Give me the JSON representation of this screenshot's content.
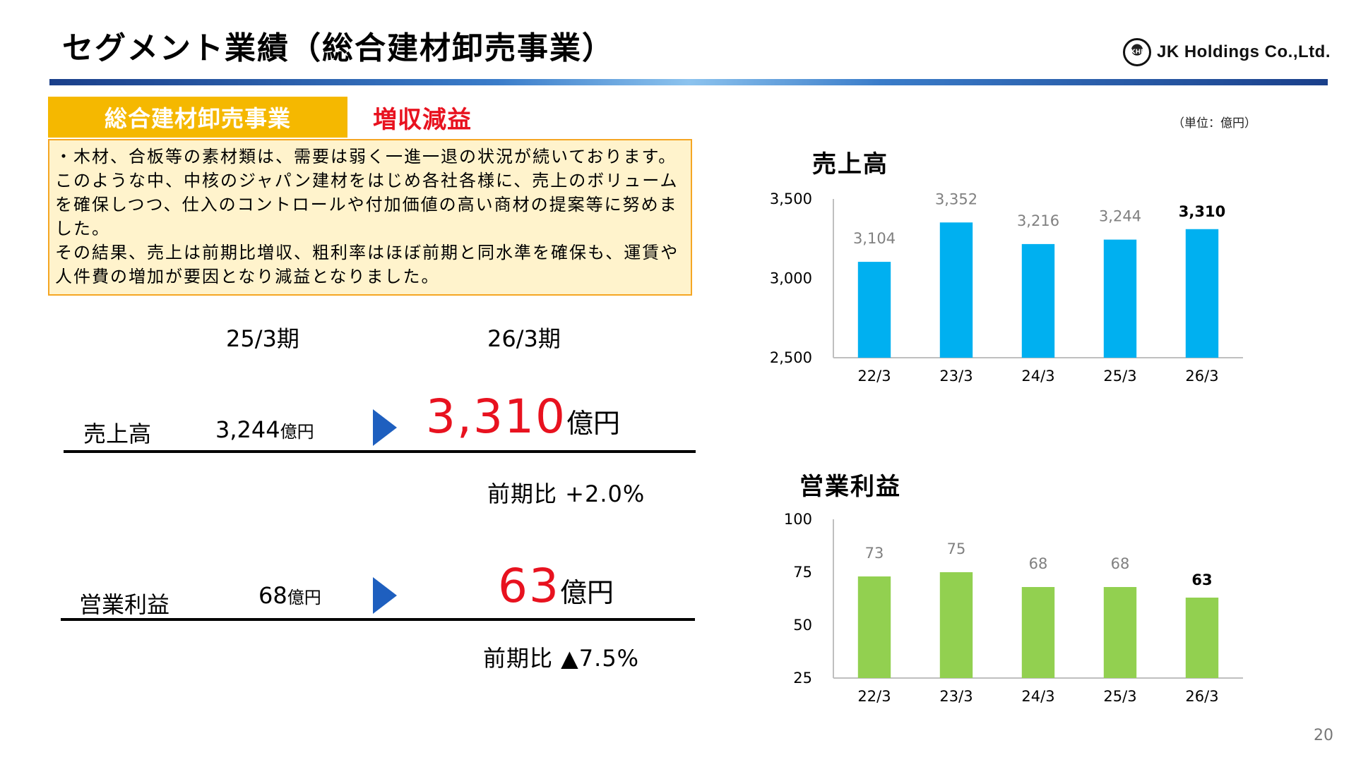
{
  "header": {
    "title": "セグメント業績（総合建材卸売事業）",
    "company": "JK Holdings Co.,Ltd.",
    "logo_mark": "JKHD"
  },
  "segment": {
    "name": "総合建材卸売事業",
    "result": "増収減益",
    "description": [
      "・木材、合板等の素材類は、需要は弱く一進一退の状況が続いております。このような中、中核のジャパン建材をはじめ各社各様に、売上のボリュームを確保しつつ、仕入のコントロールや付加価値の高い商材の提案等に努めました。",
      "その結果、売上は前期比増収、粗利率はほぼ前期と同水準を確保も、運賃や人件費の増加が要因となり減益となりました。"
    ]
  },
  "unit_note": "（単位：億円）",
  "periods": {
    "prev": "25/3期",
    "current": "26/3期"
  },
  "metrics": {
    "sales": {
      "label": "売上高",
      "prev_value": "3,244",
      "prev_unit": "億円",
      "current_value": "3,310",
      "current_unit": "億円",
      "yoy": "前期比 +2.0%"
    },
    "operating_profit": {
      "label": "営業利益",
      "prev_value": "68",
      "prev_unit": "億円",
      "current_value": "63",
      "current_unit": "億円",
      "yoy": "前期比 ▲7.5%"
    }
  },
  "colors": {
    "accent_red": "#e8121f",
    "tab_yellow": "#f5b800",
    "arrow_blue": "#1e5fbf",
    "sales_bar": "#00b0f0",
    "profit_bar": "#92d050"
  },
  "chart_data": [
    {
      "type": "bar",
      "title": "売上高",
      "categories": [
        "22/3",
        "23/3",
        "24/3",
        "25/3",
        "26/3"
      ],
      "values": [
        3104,
        3352,
        3216,
        3244,
        3310
      ],
      "value_labels": [
        "3,104",
        "3,352",
        "3,216",
        "3,244",
        "3,310"
      ],
      "yticks": [
        "2,500",
        "3,000",
        "3,500"
      ],
      "ylim": [
        2500,
        3500
      ],
      "highlight_last": true,
      "color": "#00b0f0",
      "grid": false
    },
    {
      "type": "bar",
      "title": "営業利益",
      "categories": [
        "22/3",
        "23/3",
        "24/3",
        "25/3",
        "26/3"
      ],
      "values": [
        73,
        75,
        68,
        68,
        63
      ],
      "value_labels": [
        "73",
        "75",
        "68",
        "68",
        "63"
      ],
      "yticks": [
        "25",
        "50",
        "75",
        "100"
      ],
      "ylim": [
        25,
        100
      ],
      "highlight_last": true,
      "color": "#92d050",
      "grid": false
    }
  ],
  "page_number": "20"
}
